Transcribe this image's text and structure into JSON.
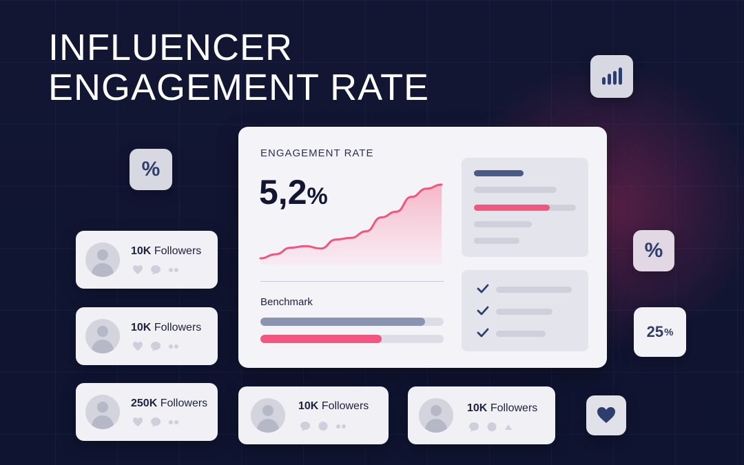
{
  "title": {
    "line1": "INFLUENCER",
    "line2": "ENGAGEMENT RATE"
  },
  "badges": {
    "percent_symbol": "%",
    "stat_value": "25",
    "stat_unit": "%",
    "icons": [
      "bar-chart-icon",
      "percent-icon",
      "heart-icon"
    ]
  },
  "dashboard": {
    "label": "ENGAGEMENT RATE",
    "value": "5,2",
    "value_unit": "%",
    "benchmark_label": "Benchmark",
    "benchmark_bars": [
      {
        "fraction": 0.9,
        "color": "#8a93b2"
      },
      {
        "fraction": 0.66,
        "color": "#f2557e"
      }
    ],
    "trend": [
      0.05,
      0.1,
      0.18,
      0.2,
      0.17,
      0.28,
      0.3,
      0.38,
      0.55,
      0.62,
      0.8,
      0.9,
      0.95
    ],
    "checklist_count": 3
  },
  "profiles": [
    {
      "count": "10K",
      "label": "Followers"
    },
    {
      "count": "10K",
      "label": "Followers"
    },
    {
      "count": "250K",
      "label": "Followers"
    },
    {
      "count": "10K",
      "label": "Followers"
    },
    {
      "count": "10K",
      "label": "Followers"
    }
  ],
  "colors": {
    "background": "#121633",
    "accent": "#f2557e",
    "navy": "#2e3d6b",
    "card": "#f0f0f5"
  }
}
